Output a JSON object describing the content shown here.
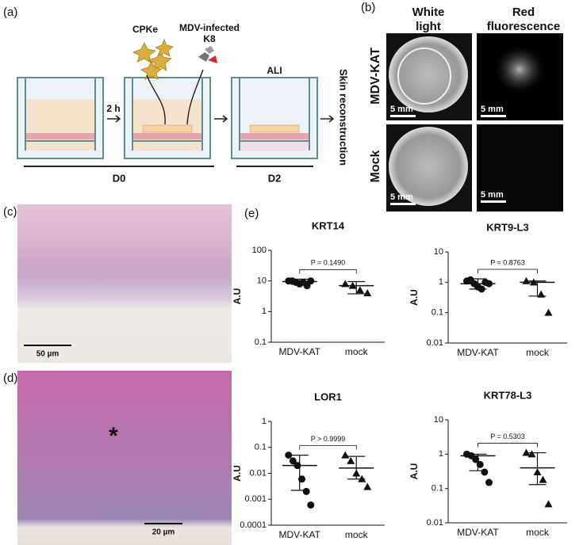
{
  "panels": {
    "a": "(a)",
    "b": "(b)",
    "c": "(c)",
    "d": "(d)",
    "e": "(e)"
  },
  "diagram": {
    "cells_primary": "CPKe",
    "cells_infected": [
      "MDV-infected",
      "K8"
    ],
    "incubation": "2 h",
    "interface": "ALI",
    "day_start": "D0",
    "day_end": "D2",
    "outcome": "Skin reconstruction"
  },
  "imaging": {
    "columns": [
      [
        "White",
        "light"
      ],
      [
        "Red",
        "fluorescence"
      ]
    ],
    "rows": [
      "MDV-KAT",
      "Mock"
    ],
    "scale_bar": "5 mm"
  },
  "histology": {
    "scale_c": "50 µm",
    "scale_d": "20 µm",
    "marker": "*"
  },
  "chart_data": [
    {
      "type": "dotplot",
      "title": "KRT14",
      "y_label": "A.U",
      "log_scale": true,
      "categories": [
        "MDV-KAT",
        "mock"
      ],
      "markers": [
        "circle",
        "triangle"
      ],
      "groups": [
        {
          "values": [
            10,
            10,
            9,
            8,
            9,
            7,
            10
          ],
          "center": 9.5,
          "low": 7.8,
          "high": 11.5
        },
        {
          "values": [
            8,
            7,
            5,
            4
          ],
          "center": 7,
          "low": 3.8,
          "high": 9.5
        }
      ],
      "ylim": [
        0.1,
        100
      ],
      "yticks": [
        0.1,
        1,
        10,
        100
      ],
      "annotation": "P = 0.1490"
    },
    {
      "type": "dotplot",
      "title": "KRT9-L3",
      "y_label": "A.U",
      "log_scale": true,
      "categories": [
        "MDV-KAT",
        "mock"
      ],
      "markers": [
        "circle",
        "triangle"
      ],
      "groups": [
        {
          "values": [
            1.1,
            1.2,
            0.9,
            0.7,
            0.6,
            1,
            0.9
          ],
          "center": 0.9,
          "low": 0.6,
          "high": 1.3
        },
        {
          "values": [
            1.1,
            1,
            0.4,
            0.1
          ],
          "center": 1,
          "low": 0.35,
          "high": 1.1
        }
      ],
      "ylim": [
        0.01,
        10
      ],
      "yticks": [
        0.01,
        0.1,
        1,
        10
      ],
      "annotation": "P = 0.8763"
    },
    {
      "type": "dotplot",
      "title": "LOR1",
      "y_label": "A.U",
      "log_scale": true,
      "categories": [
        "MDV-KAT",
        "mock"
      ],
      "markers": [
        "circle",
        "triangle"
      ],
      "groups": [
        {
          "values": [
            0.05,
            0.03,
            0.02,
            0.006,
            0.002,
            0.0006
          ],
          "center": 0.02,
          "low": 0.0022,
          "high": 0.05
        },
        {
          "values": [
            0.05,
            0.03,
            0.01,
            0.006,
            0.003
          ],
          "center": 0.016,
          "low": 0.006,
          "high": 0.045
        }
      ],
      "ylim": [
        0.0001,
        1
      ],
      "yticks": [
        0.0001,
        0.001,
        0.01,
        0.1,
        1
      ],
      "annotation": "P > 0.9999"
    },
    {
      "type": "dotplot",
      "title": "KRT78-L3",
      "y_label": "A.U",
      "log_scale": true,
      "categories": [
        "MDV-KAT",
        "mock"
      ],
      "markers": [
        "circle",
        "triangle"
      ],
      "groups": [
        {
          "values": [
            1,
            0.9,
            0.7,
            0.5,
            0.3,
            0.15
          ],
          "center": 0.9,
          "low": 0.33,
          "high": 1
        },
        {
          "values": [
            1.1,
            1,
            0.3,
            0.18,
            0.035
          ],
          "center": 0.4,
          "low": 0.13,
          "high": 1.1
        }
      ],
      "ylim": [
        0.01,
        10
      ],
      "yticks": [
        0.01,
        0.1,
        1,
        10
      ],
      "annotation": "P = 0.5303"
    }
  ]
}
